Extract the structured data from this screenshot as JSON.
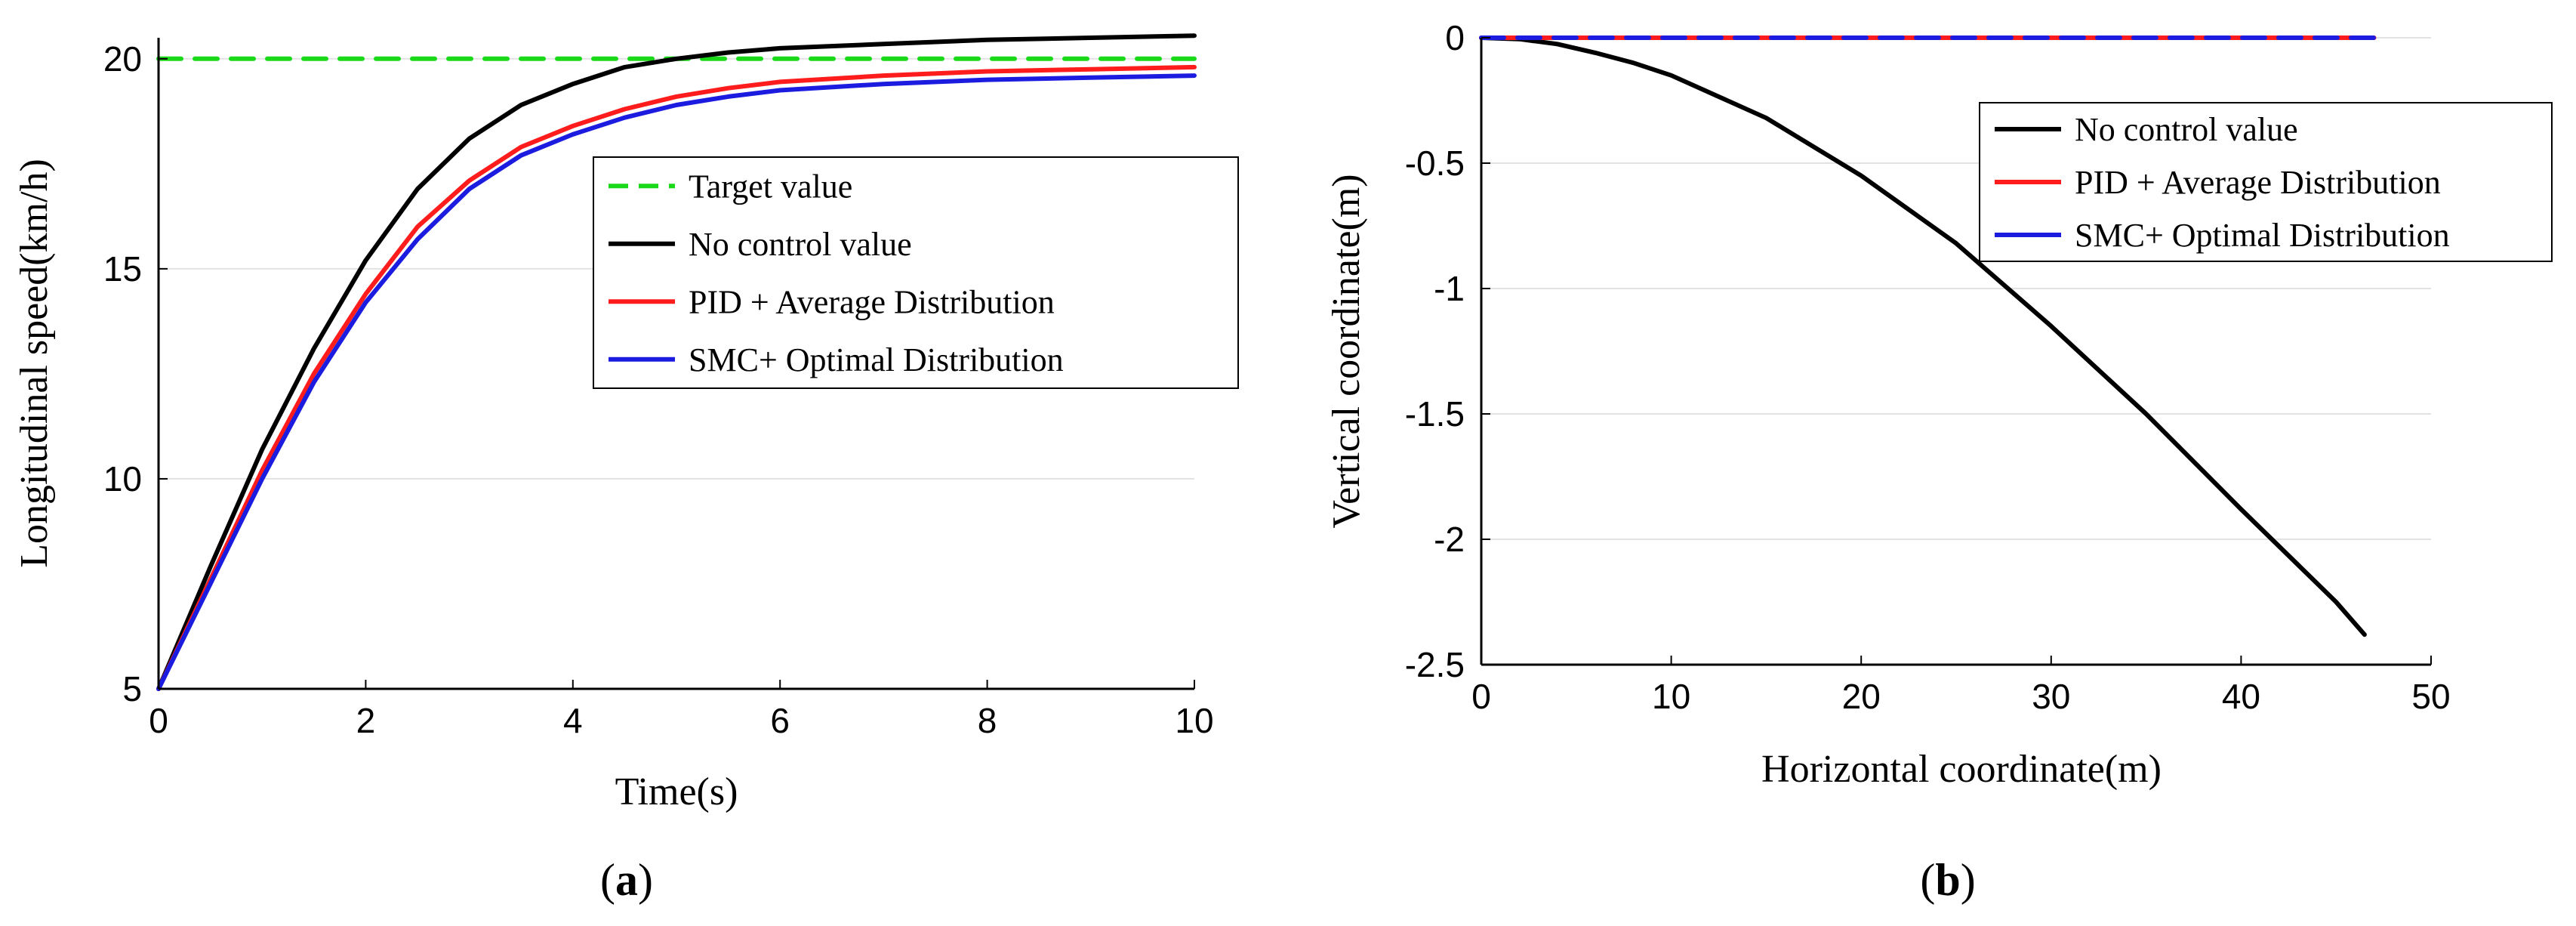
{
  "chart_data": [
    {
      "id": "a",
      "type": "line",
      "caption": {
        "open": "(",
        "letter": "a",
        "close": ")"
      },
      "xlabel": "Time(s)",
      "ylabel": "Longitudinal speed(km/h)",
      "xlim": [
        0,
        10
      ],
      "ylim": [
        5,
        20.5
      ],
      "xticks": [
        "0",
        "2",
        "4",
        "6",
        "8",
        "10"
      ],
      "yticks": [
        "5",
        "10",
        "15",
        "20"
      ],
      "grid": "horizontal",
      "legend_position": "upper-right",
      "series": [
        {
          "name": "Target value",
          "color": "#19d919",
          "dash": true,
          "x": [
            0,
            10
          ],
          "y": [
            20,
            20
          ]
        },
        {
          "name": "No control value",
          "color": "#000000",
          "dash": false,
          "x": [
            0,
            0.5,
            1,
            1.5,
            2,
            2.5,
            3,
            3.5,
            4,
            4.5,
            5,
            5.5,
            6,
            7,
            8,
            9,
            10
          ],
          "y": [
            5,
            7.9,
            10.7,
            13.1,
            15.2,
            16.9,
            18.1,
            18.9,
            19.4,
            19.8,
            20.0,
            20.15,
            20.25,
            20.35,
            20.45,
            20.5,
            20.55
          ]
        },
        {
          "name": "PID + Average Distribution",
          "color": "#ff1c1c",
          "dash": false,
          "x": [
            0,
            0.5,
            1,
            1.5,
            2,
            2.5,
            3,
            3.5,
            4,
            4.5,
            5,
            5.5,
            6,
            7,
            8,
            9,
            10
          ],
          "y": [
            5,
            7.6,
            10.2,
            12.5,
            14.4,
            16.0,
            17.1,
            17.9,
            18.4,
            18.8,
            19.1,
            19.3,
            19.45,
            19.6,
            19.7,
            19.75,
            19.8
          ]
        },
        {
          "name": "SMC+ Optimal Distribution",
          "color": "#1c1ce0",
          "dash": false,
          "x": [
            0,
            0.5,
            1,
            1.5,
            2,
            2.5,
            3,
            3.5,
            4,
            4.5,
            5,
            5.5,
            6,
            7,
            8,
            9,
            10
          ],
          "y": [
            5,
            7.5,
            10.0,
            12.3,
            14.2,
            15.7,
            16.9,
            17.7,
            18.2,
            18.6,
            18.9,
            19.1,
            19.25,
            19.4,
            19.5,
            19.55,
            19.6
          ]
        }
      ]
    },
    {
      "id": "b",
      "type": "line",
      "caption": {
        "open": "(",
        "letter": "b",
        "close": ")"
      },
      "xlabel": "Horizontal coordinate(m)",
      "ylabel": "Vertical coordinate(m)",
      "xlim": [
        0,
        50
      ],
      "ylim": [
        -2.5,
        0
      ],
      "xticks": [
        "0",
        "10",
        "20",
        "30",
        "40",
        "50"
      ],
      "yticks": [
        "0",
        "-0.5",
        "-1",
        "-1.5",
        "-2",
        "-2.5"
      ],
      "grid": "horizontal",
      "legend_position": "upper-right",
      "series": [
        {
          "name": "No control value",
          "color": "#000000",
          "dash": false,
          "x": [
            0,
            2,
            4,
            6,
            8,
            10,
            15,
            20,
            25,
            30,
            35,
            40,
            45,
            46.5
          ],
          "y": [
            0,
            -0.005,
            -0.025,
            -0.06,
            -0.1,
            -0.15,
            -0.32,
            -0.55,
            -0.82,
            -1.15,
            -1.5,
            -1.88,
            -2.25,
            -2.38
          ]
        },
        {
          "name": "PID + Average Distribution",
          "color": "#ff1c1c",
          "dash": false,
          "x": [
            0,
            47
          ],
          "y": [
            0,
            0
          ]
        },
        {
          "name": "SMC+ Optimal Distribution",
          "color": "#1c1ce0",
          "dash": true,
          "x": [
            0,
            47
          ],
          "y": [
            0,
            0
          ]
        }
      ]
    }
  ]
}
